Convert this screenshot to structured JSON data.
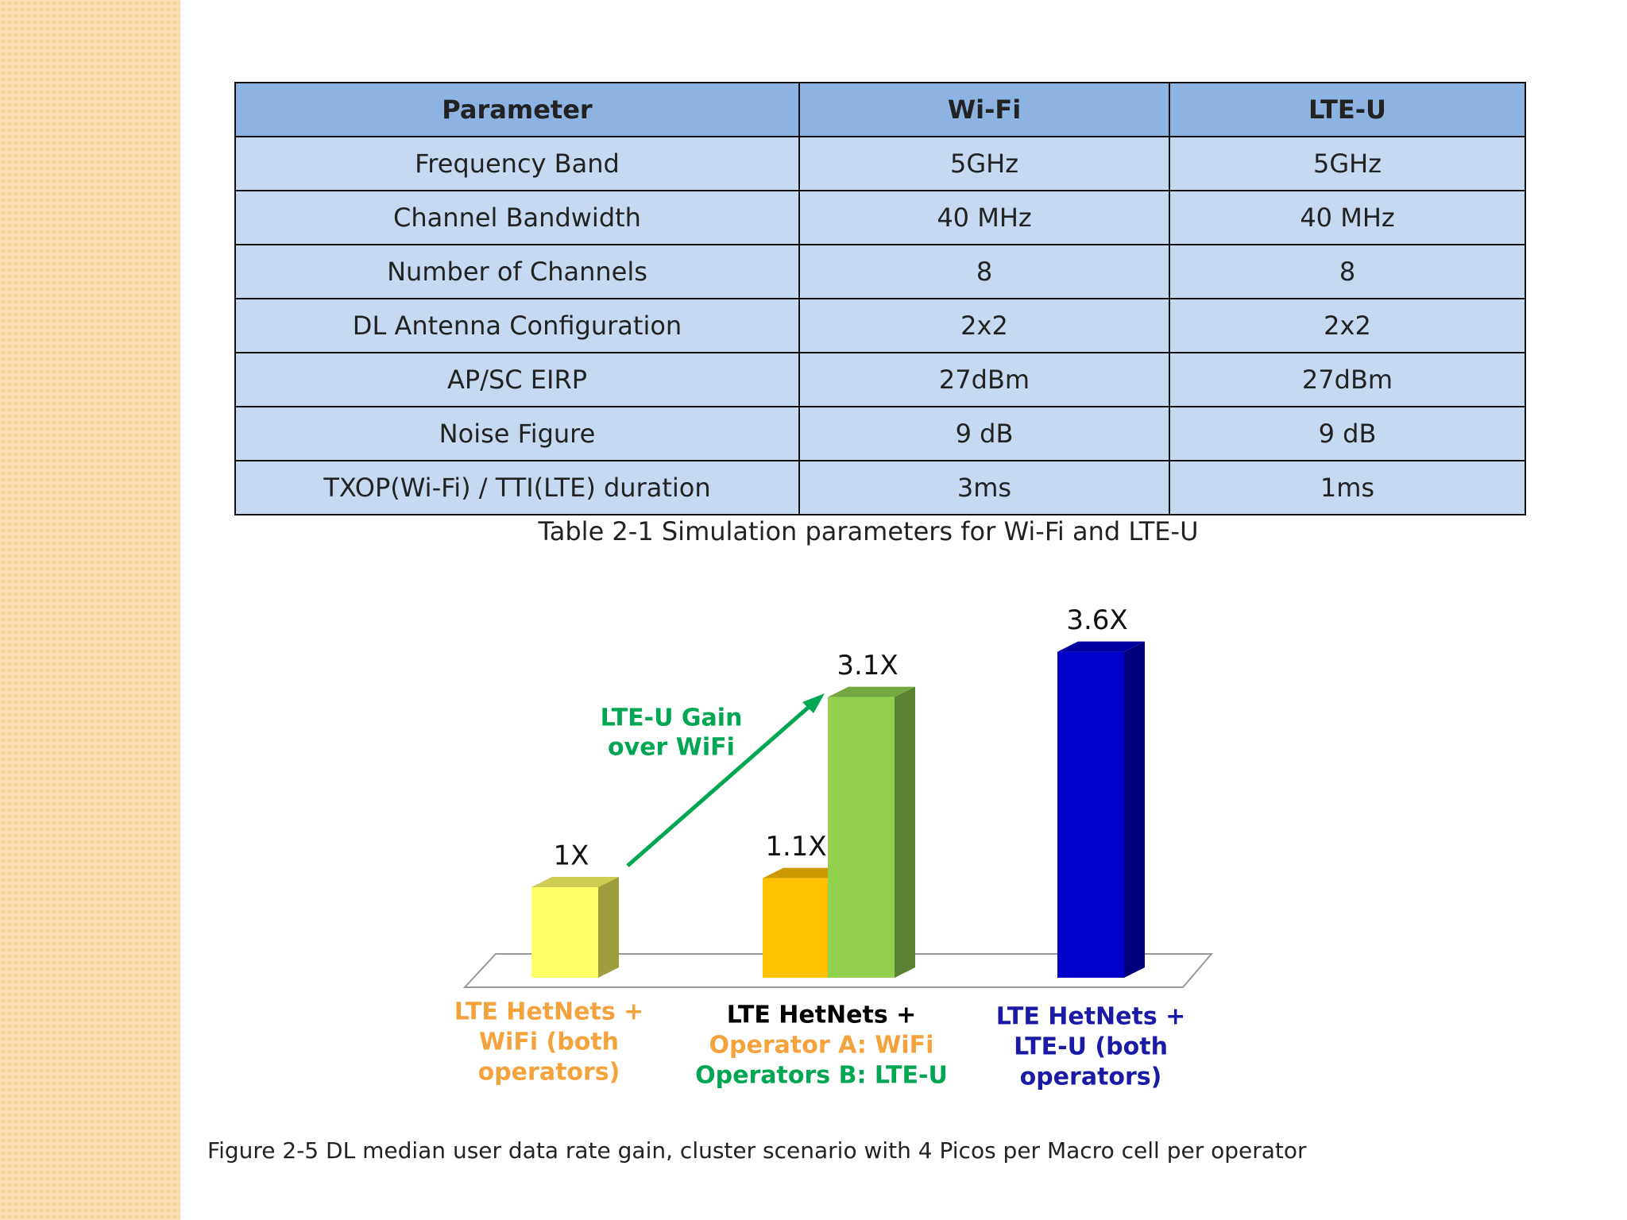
{
  "table": {
    "header": [
      "Parameter",
      "Wi-Fi",
      "LTE-U"
    ],
    "rows": [
      [
        "Frequency Band",
        "5GHz",
        "5GHz"
      ],
      [
        "Channel Bandwidth",
        "40 MHz",
        "40 MHz"
      ],
      [
        "Number of Channels",
        "8",
        "8"
      ],
      [
        "DL Antenna Configuration",
        "2x2",
        "2x2"
      ],
      [
        "AP/SC EIRP",
        "27dBm",
        "27dBm"
      ],
      [
        "Noise Figure",
        "9 dB",
        "9 dB"
      ],
      [
        "TXOP(Wi-Fi) / TTI(LTE) duration",
        "3ms",
        "1ms"
      ]
    ],
    "caption": "Table 2-1 Simulation parameters for Wi-Fi and LTE-U"
  },
  "figure": {
    "bars": [
      {
        "value": 1,
        "value_label": "1X",
        "color": "#ffff66",
        "group": 0
      },
      {
        "value": 1.1,
        "value_label": "1.1X",
        "color": "#ffc000",
        "group": 1
      },
      {
        "value": 3.1,
        "value_label": "3.1X",
        "color": "#92d050",
        "group": 1
      },
      {
        "value": 3.6,
        "value_label": "3.6X",
        "color": "#0000c8",
        "group": 2
      }
    ],
    "arrow_label": [
      "LTE-U Gain",
      "over WiFi"
    ],
    "arrow_color": "#00a651",
    "groups": [
      [
        {
          "text": "LTE HetNets +",
          "color": "#f4a23c"
        },
        {
          "text": "WiFi (both",
          "color": "#f4a23c"
        },
        {
          "text": "operators)",
          "color": "#f4a23c"
        }
      ],
      [
        {
          "text": "LTE HetNets +",
          "color": "#000000"
        },
        {
          "text": "Operator A: WiFi",
          "color": "#f4a23c"
        },
        {
          "text": "Operators B: LTE-U",
          "color": "#00a651"
        }
      ],
      [
        {
          "text": "LTE HetNets +",
          "color": "#1a1aa6"
        },
        {
          "text": "LTE-U (both",
          "color": "#1a1aa6"
        },
        {
          "text": "operators)",
          "color": "#1a1aa6"
        }
      ]
    ],
    "caption": "Figure 2-5 DL median user data rate gain, cluster scenario with 4 Picos per Macro cell per operator"
  }
}
